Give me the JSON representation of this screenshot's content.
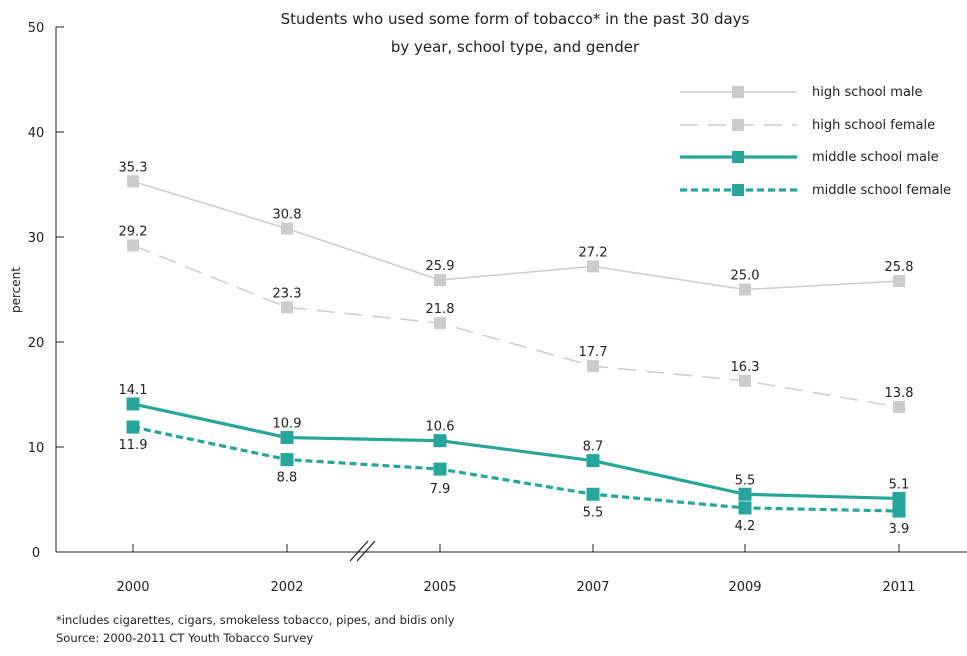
{
  "chart_data": {
    "type": "line",
    "title": "Students who used some form of tobacco* in the past 30 days",
    "subtitle": "by year, school type, and gender",
    "ylabel": "percent",
    "xlabel": "",
    "categories": [
      "2000",
      "2002",
      "2005",
      "2007",
      "2009",
      "2011"
    ],
    "ylim": [
      0,
      50
    ],
    "yticks": [
      "0",
      "10",
      "20",
      "30",
      "40",
      "50"
    ],
    "grid": false,
    "legend_position": "top-right",
    "axis_break": "between 2002 and 2005",
    "series": [
      {
        "name": "high school male",
        "values": [
          35.3,
          30.8,
          25.9,
          27.2,
          25.0,
          25.8
        ],
        "labels": [
          "35.3",
          "30.8",
          "25.9",
          "27.2",
          "25.0",
          "25.8"
        ],
        "color": "#cccccc",
        "style": "solid"
      },
      {
        "name": "high school female",
        "values": [
          29.2,
          23.3,
          21.8,
          17.7,
          16.3,
          13.8
        ],
        "labels": [
          "29.2",
          "23.3",
          "21.8",
          "17.7",
          "16.3",
          "13.8"
        ],
        "color": "#cccccc",
        "style": "dashed"
      },
      {
        "name": "middle school male",
        "values": [
          14.1,
          10.9,
          10.6,
          8.7,
          5.5,
          5.1
        ],
        "labels": [
          "14.1",
          "10.9",
          "10.6",
          "8.7",
          "5.5",
          "5.1"
        ],
        "color": "#26a69a",
        "style": "solid"
      },
      {
        "name": "middle school female",
        "values": [
          11.9,
          8.8,
          7.9,
          5.5,
          4.2,
          3.9
        ],
        "labels": [
          "11.9",
          "8.8",
          "7.9",
          "5.5",
          "4.2",
          "3.9"
        ],
        "color": "#26a69a",
        "style": "dotted"
      }
    ]
  },
  "footnote": "*includes cigarettes, cigars, smokeless tobacco, pipes, and bidis only",
  "source": "Source: 2000-2011 CT Youth Tobacco Survey"
}
